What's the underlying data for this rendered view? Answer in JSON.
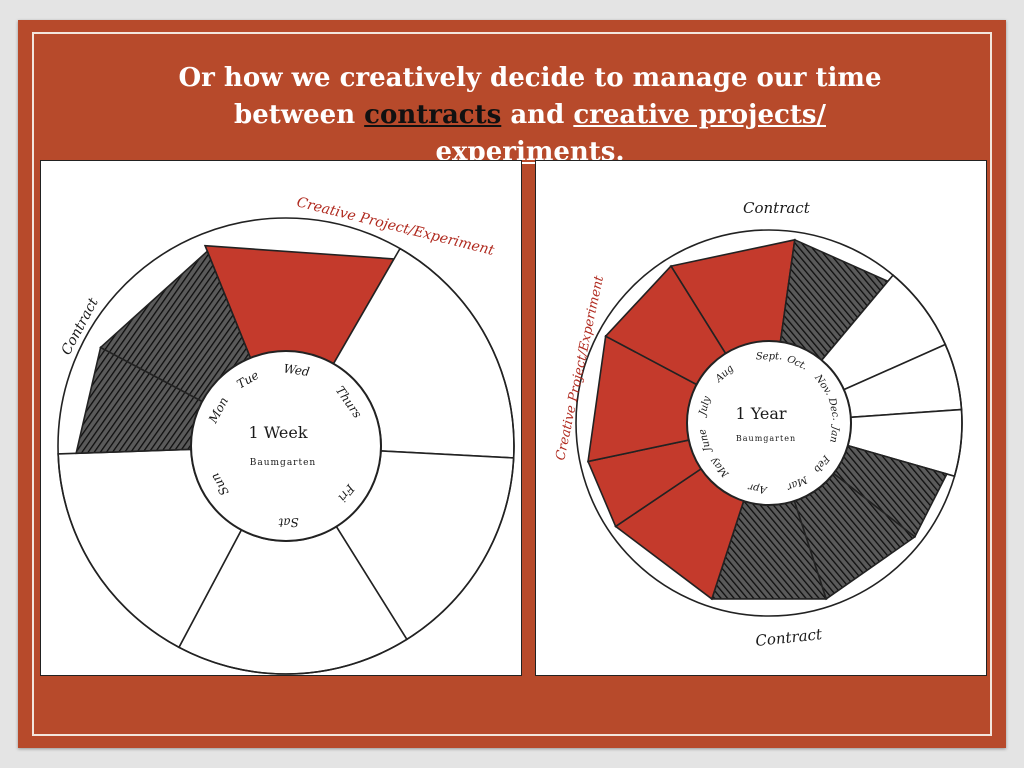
{
  "slide": {
    "title_part1": "Or how we creatively decide to manage our time",
    "title_part2": "between ",
    "title_contracts": "contracts",
    "title_part3": " and ",
    "title_creative": "creative projects/",
    "title_experiments": "experiments."
  },
  "week_wheel": {
    "center_title": "1 Week",
    "center_sub": "Baumgarten",
    "days": [
      "Mon",
      "Tue",
      "Wed",
      "Thurs",
      "Fri",
      "Sat",
      "Sun"
    ],
    "label_creative": "Creative Project/Experiment",
    "label_contract": "Contract"
  },
  "year_wheel": {
    "center_title": "1 Year",
    "center_sub": "Baumgarten",
    "months": [
      "Sept.",
      "Oct.",
      "Nov.",
      "Dec.",
      "Jan",
      "Feb",
      "Mar",
      "Apr",
      "May",
      "June",
      "July",
      "Aug"
    ],
    "label_contract_top": "Contract",
    "label_contract_bottom": "Contract",
    "label_creative": "Creative Project/Experiment"
  },
  "colors": {
    "background": "#b74a2b",
    "creative_fill": "#c43a2c",
    "contract_fill": "#3a3a3a"
  }
}
